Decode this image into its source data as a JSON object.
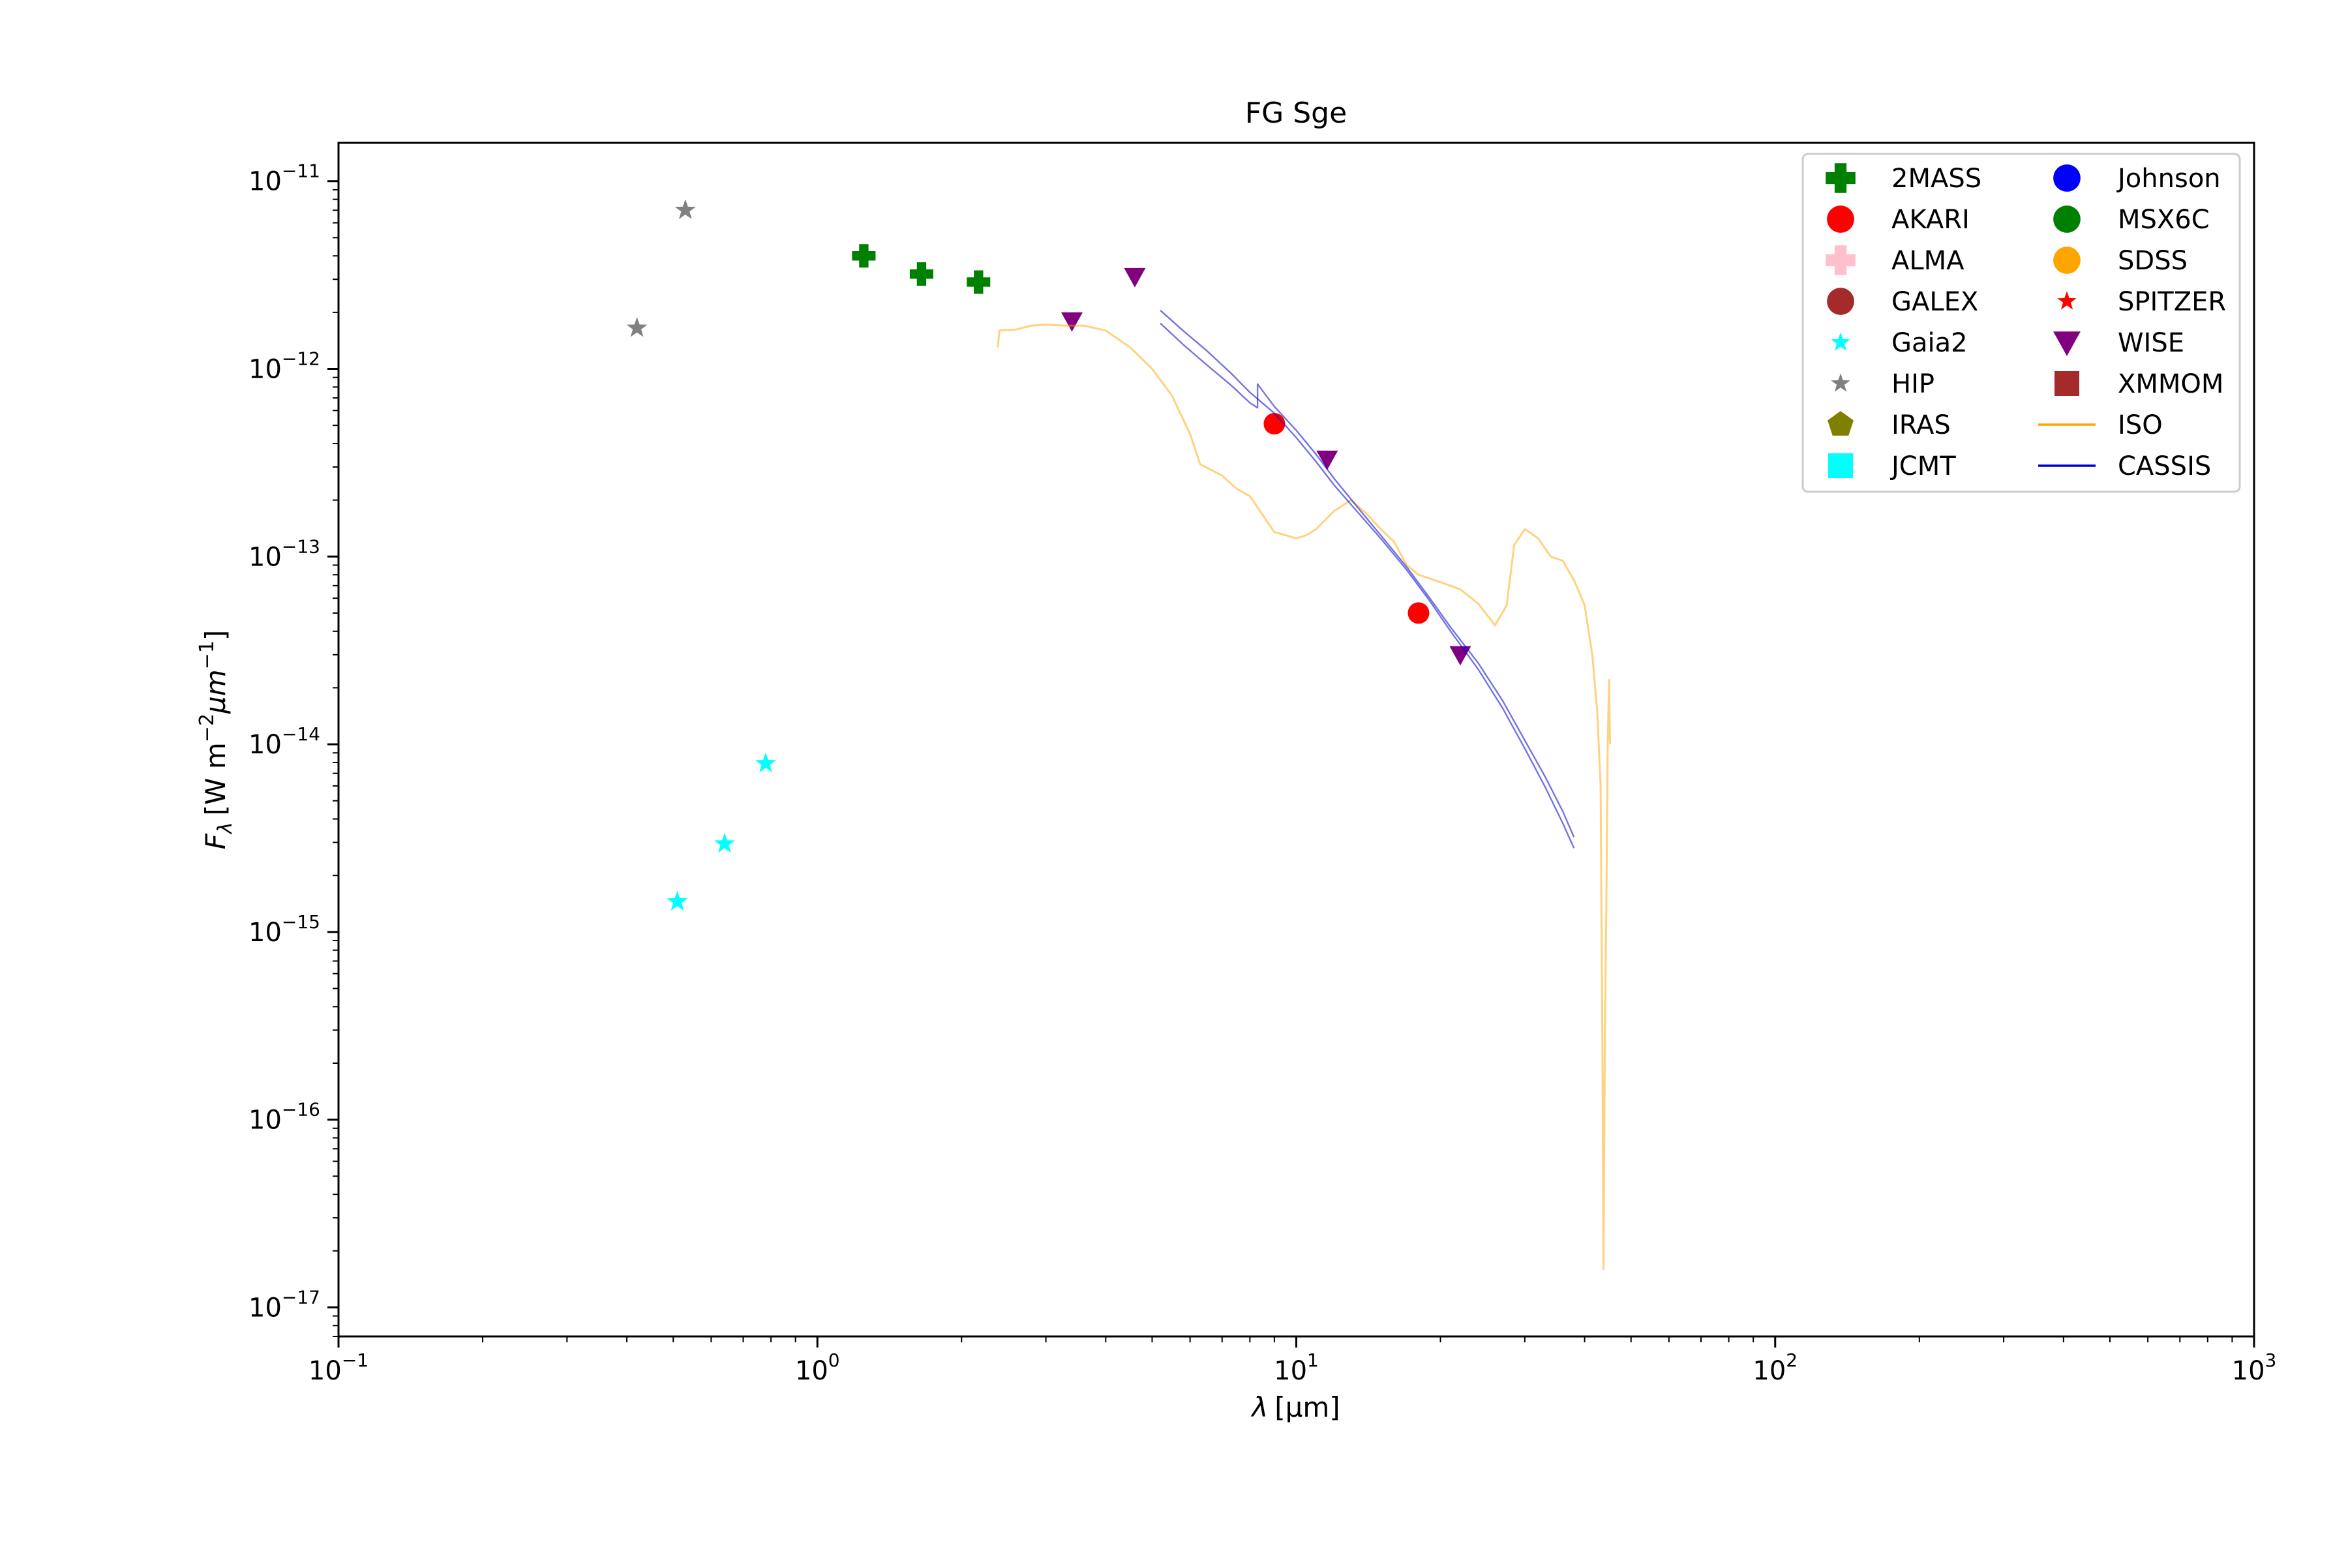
{
  "chart_data": {
    "type": "scatter",
    "title": "FG Sge",
    "xlabel_symbol": "λ",
    "xlabel_unit": "[μm]",
    "ylabel_symbol": "F",
    "ylabel_sub": "λ",
    "ylabel_unit_prefix": "[W m",
    "ylabel_exp1": "−2",
    "ylabel_mid": "μm",
    "ylabel_exp2": "−1",
    "ylabel_suffix": "]",
    "x_scale": "log",
    "y_scale": "log",
    "xlim": [
      0.1,
      1000
    ],
    "ylim": [
      7e-18,
      1.6e-11
    ],
    "x_ticks": [
      {
        "value": 0.1,
        "base": "10",
        "exp": "−1"
      },
      {
        "value": 1,
        "base": "10",
        "exp": "0"
      },
      {
        "value": 10,
        "base": "10",
        "exp": "1"
      },
      {
        "value": 100,
        "base": "10",
        "exp": "2"
      },
      {
        "value": 1000,
        "base": "10",
        "exp": "3"
      }
    ],
    "y_ticks": [
      {
        "value": 1e-17,
        "base": "10",
        "exp": "−17"
      },
      {
        "value": 1e-16,
        "base": "10",
        "exp": "−16"
      },
      {
        "value": 1e-15,
        "base": "10",
        "exp": "−15"
      },
      {
        "value": 1e-14,
        "base": "10",
        "exp": "−14"
      },
      {
        "value": 1e-13,
        "base": "10",
        "exp": "−13"
      },
      {
        "value": 1e-12,
        "base": "10",
        "exp": "−12"
      },
      {
        "value": 1e-11,
        "base": "10",
        "exp": "−11"
      }
    ],
    "grid": false,
    "legend_position": "top-right",
    "legend_columns": 2,
    "series": [
      {
        "name": "2MASS",
        "marker": "plus",
        "color": "#008000",
        "points": [
          [
            1.25,
            4e-12
          ],
          [
            1.65,
            3.2e-12
          ],
          [
            2.17,
            2.9e-12
          ]
        ]
      },
      {
        "name": "AKARI",
        "marker": "circle",
        "color": "#ff0000",
        "points": [
          [
            9.0,
            5.1e-13
          ],
          [
            18.0,
            5e-14
          ]
        ]
      },
      {
        "name": "ALMA",
        "marker": "plus",
        "color": "#ffc0cb",
        "points": []
      },
      {
        "name": "GALEX",
        "marker": "circle",
        "color": "#a52a2a",
        "points": []
      },
      {
        "name": "Gaia2",
        "marker": "star",
        "color": "#00ffff",
        "points": [
          [
            0.51,
            1.45e-15
          ],
          [
            0.64,
            2.95e-15
          ],
          [
            0.78,
            7.9e-15
          ]
        ]
      },
      {
        "name": "HIP",
        "marker": "star",
        "color": "#808080",
        "points": [
          [
            0.42,
            1.65e-12
          ],
          [
            0.53,
            7e-12
          ]
        ]
      },
      {
        "name": "IRAS",
        "marker": "pentagon",
        "color": "#808000",
        "points": []
      },
      {
        "name": "JCMT",
        "marker": "square",
        "color": "#00ffff",
        "points": []
      },
      {
        "name": "Johnson",
        "marker": "circle",
        "color": "#0000ff",
        "points": []
      },
      {
        "name": "MSX6C",
        "marker": "circle",
        "color": "#008000",
        "points": []
      },
      {
        "name": "SDSS",
        "marker": "circle",
        "color": "#ffa500",
        "points": []
      },
      {
        "name": "SPITZER",
        "marker": "star",
        "color": "#ff0000",
        "points": []
      },
      {
        "name": "WISE",
        "marker": "triangle-down",
        "color": "#800080",
        "points": [
          [
            3.4,
            1.8e-12
          ],
          [
            4.6,
            3.1e-12
          ],
          [
            11.6,
            3.3e-13
          ],
          [
            22.0,
            3e-14
          ]
        ]
      },
      {
        "name": "XMMOM",
        "marker": "square",
        "color": "#a52a2a",
        "points": []
      },
      {
        "name": "ISO",
        "marker": "line",
        "color": "#ffa500",
        "opacity": 0.5,
        "points": [
          [
            2.38,
            1.3e-12
          ],
          [
            2.4,
            1.6e-12
          ],
          [
            2.6,
            1.62e-12
          ],
          [
            2.8,
            1.7e-12
          ],
          [
            3.0,
            1.72e-12
          ],
          [
            3.3,
            1.7e-12
          ],
          [
            3.6,
            1.7e-12
          ],
          [
            4.0,
            1.6e-12
          ],
          [
            4.5,
            1.3e-12
          ],
          [
            5.0,
            1e-12
          ],
          [
            5.5,
            7.2e-13
          ],
          [
            6.0,
            4.5e-13
          ],
          [
            6.3,
            3.1e-13
          ],
          [
            7.0,
            2.7e-13
          ],
          [
            7.5,
            2.3e-13
          ],
          [
            8.0,
            2.1e-13
          ],
          [
            8.6,
            1.6e-13
          ],
          [
            9.0,
            1.35e-13
          ],
          [
            9.5,
            1.3e-13
          ],
          [
            10.0,
            1.25e-13
          ],
          [
            10.5,
            1.3e-13
          ],
          [
            11.0,
            1.4e-13
          ],
          [
            12.0,
            1.75e-13
          ],
          [
            13.0,
            2e-13
          ],
          [
            14.0,
            1.7e-13
          ],
          [
            15.0,
            1.4e-13
          ],
          [
            16.0,
            1.2e-13
          ],
          [
            17.0,
            9e-14
          ],
          [
            18.0,
            8e-14
          ],
          [
            20.0,
            7.3e-14
          ],
          [
            22.0,
            6.7e-14
          ],
          [
            24.0,
            5.6e-14
          ],
          [
            26.0,
            4.3e-14
          ],
          [
            27.5,
            5.5e-14
          ],
          [
            28.5,
            1.15e-13
          ],
          [
            30.0,
            1.4e-13
          ],
          [
            32.0,
            1.25e-13
          ],
          [
            34.0,
            1e-13
          ],
          [
            36.0,
            9.5e-14
          ],
          [
            38.0,
            7.5e-14
          ],
          [
            40.0,
            5.5e-14
          ],
          [
            41.5,
            3e-14
          ],
          [
            42.5,
            1.5e-14
          ],
          [
            43.2,
            6e-15
          ],
          [
            43.6,
            2e-16
          ],
          [
            43.8,
            1.6e-17
          ],
          [
            44.1,
            3e-16
          ],
          [
            44.4,
            1.3e-15
          ],
          [
            44.7,
            1e-14
          ],
          [
            45.0,
            2.2e-14
          ],
          [
            45.2,
            1e-14
          ]
        ]
      },
      {
        "name": "CASSIS",
        "marker": "line",
        "color": "#0000cd",
        "opacity": 0.55,
        "points": [
          [
            5.2,
            2.05e-12
          ],
          [
            5.8,
            1.6e-12
          ],
          [
            6.5,
            1.25e-12
          ],
          [
            7.3,
            9.5e-13
          ],
          [
            8.0,
            7.5e-13
          ],
          [
            9.0,
            5.8e-13
          ],
          [
            10.0,
            4.3e-13
          ],
          [
            11.0,
            3.2e-13
          ],
          [
            12.0,
            2.4e-13
          ],
          [
            13.5,
            1.7e-13
          ],
          [
            15.0,
            1.25e-13
          ],
          [
            17.0,
            8.5e-14
          ],
          [
            19.0,
            5.8e-14
          ],
          [
            21.0,
            4e-14
          ],
          [
            24.0,
            2.5e-14
          ],
          [
            27.0,
            1.55e-14
          ],
          [
            30.0,
            9.5e-15
          ],
          [
            33.0,
            6e-15
          ],
          [
            36.0,
            3.8e-15
          ],
          [
            38.0,
            2.8e-15
          ]
        ],
        "points_b": [
          [
            5.2,
            1.75e-12
          ],
          [
            5.8,
            1.35e-12
          ],
          [
            6.5,
            1.05e-12
          ],
          [
            7.3,
            8.2e-13
          ],
          [
            8.0,
            6.6e-13
          ],
          [
            8.3,
            6.2e-13
          ],
          [
            8.3,
            8.3e-13
          ],
          [
            9.0,
            6.3e-13
          ],
          [
            10.0,
            4.7e-13
          ],
          [
            11.0,
            3.5e-13
          ],
          [
            12.0,
            2.6e-13
          ],
          [
            13.5,
            1.8e-13
          ],
          [
            15.0,
            1.3e-13
          ],
          [
            17.0,
            8.8e-14
          ],
          [
            19.0,
            6e-14
          ],
          [
            21.0,
            4.2e-14
          ],
          [
            24.0,
            2.7e-14
          ],
          [
            27.0,
            1.7e-14
          ],
          [
            30.0,
            1.05e-14
          ],
          [
            33.0,
            6.8e-15
          ],
          [
            36.0,
            4.4e-15
          ],
          [
            38.0,
            3.2e-15
          ]
        ]
      }
    ]
  }
}
